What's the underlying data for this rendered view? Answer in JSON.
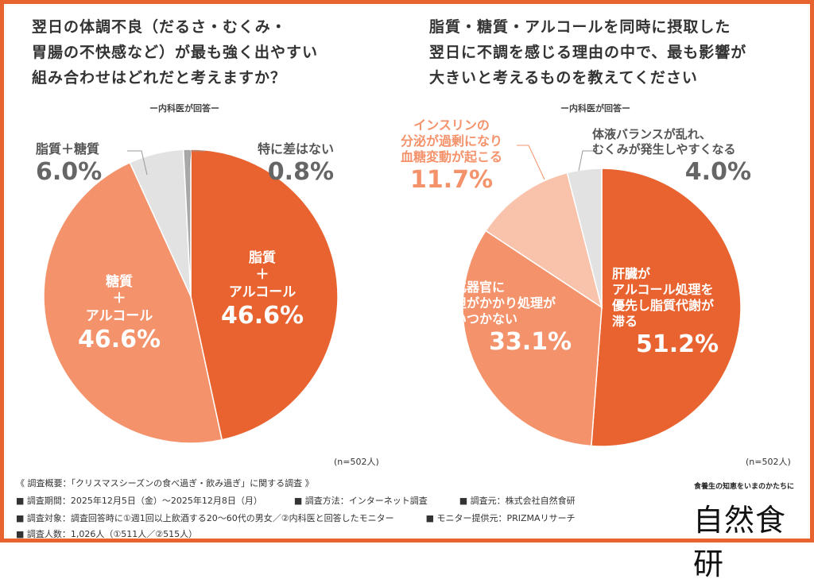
{
  "chart_data": [
    {
      "type": "pie",
      "title": "翌日の体調不良（だるさ・むくみ・胃腸の不快感など）が最も強く出やすい組み合わせはどれだと考えますか？",
      "subtitle": "ー内科医が回答ー",
      "n": "(n=502人)",
      "slices": [
        {
          "label": "脂質＋アルコール",
          "value": 46.6,
          "pct": "46.6%",
          "color": "#e8632f"
        },
        {
          "label": "糖質＋アルコール",
          "value": 46.6,
          "pct": "46.6%",
          "color": "#f4936b"
        },
        {
          "label": "脂質＋糖質",
          "value": 6.0,
          "pct": "6.0%",
          "color": "#e2e2e2"
        },
        {
          "label": "特に差はない",
          "value": 0.8,
          "pct": "0.8%",
          "color": "#a8a8a8"
        }
      ]
    },
    {
      "type": "pie",
      "title": "脂質・糖質・アルコールを同時に摂取した翌日に不調を感じる理由の中で、最も影響が大きいと考えるものを教えてください",
      "subtitle": "ー内科医が回答ー",
      "n": "(n=502人)",
      "slices": [
        {
          "label": "肝臓がアルコール処理を優先し脂質代謝が滞る",
          "value": 51.2,
          "pct": "51.2%",
          "color": "#e8632f"
        },
        {
          "label": "消化器官に負担がかかり処理が追いつかない",
          "value": 33.1,
          "pct": "33.1%",
          "color": "#f4936b"
        },
        {
          "label": "インスリンの分泌が過剰になり血糖変動が起こる",
          "value": 11.7,
          "pct": "11.7%",
          "color": "#f9c2ab"
        },
        {
          "label": "体液バランスが乱れ、むくみが発生しやすくなる",
          "value": 4.0,
          "pct": "4.0%",
          "color": "#e2e2e2"
        }
      ]
    }
  ],
  "titles": {
    "left": [
      "翌日の体調不良（だるさ・むくみ・",
      "胃腸の不快感など）が最も強く出やすい",
      "組み合わせはどれだと考えますか？"
    ],
    "right": [
      "脂質・糖質・アルコールを同時に摂取した",
      "翌日に不調を感じる理由の中で、最も影響が",
      "大きいと考えるものを教えてください"
    ]
  },
  "labels": {
    "l0": [
      "脂質",
      "＋",
      "アルコール"
    ],
    "l1": [
      "糖質",
      "＋",
      "アルコール"
    ],
    "l2": "脂質＋糖質",
    "l3": "特に差はない",
    "r0": [
      "肝臓が",
      "アルコール処理を",
      "優先し脂質代謝が",
      "滞る"
    ],
    "r1": [
      "消化器官に",
      "負担がかかり処理が",
      "追いつかない"
    ],
    "r2": [
      "インスリンの",
      "分泌が過剰になり",
      "血糖変動が起こる"
    ],
    "r3": [
      "体液バランスが乱れ、",
      "むくみが発生しやすくなる"
    ]
  },
  "footer": {
    "summary": "《 調査概要：「クリスマスシーズンの食べ過ぎ・飲み過ぎ」に関する調査 》",
    "period": "■ 調査期間：2025年12月5日（金）～2025年12月8日（月）",
    "method": "■ 調査方法：インターネット調査",
    "org": "■ 調査元：株式会社自然食研",
    "target": "■ 調査対象：調査回答時に①週1回以上飲酒する20～60代の男女／②内科医と回答したモニター",
    "provider": "■ モニター提供元：PRIZMAリサーチ",
    "count": "■ 調査人数：1,026人（①511人／②515人）"
  },
  "logo": {
    "tagline": "食養生の知恵をいまのかたちに",
    "name": "自然食研"
  }
}
